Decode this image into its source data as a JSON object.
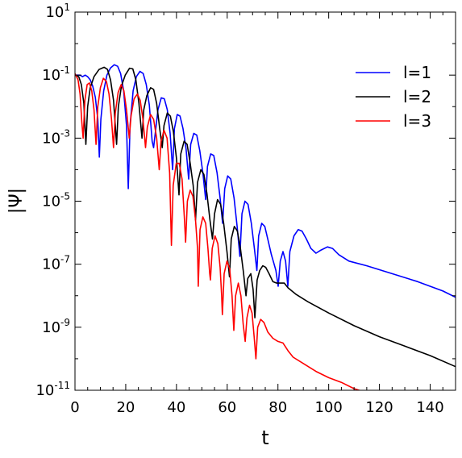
{
  "chart_data": {
    "type": "line",
    "title": "",
    "xlabel": "t",
    "ylabel": "|Ψ|",
    "xlim": [
      0,
      150
    ],
    "ylim_log10": [
      -11,
      1
    ],
    "yscale": "log",
    "grid": false,
    "legend_position": "upper right",
    "x_ticks": [
      0,
      20,
      40,
      60,
      80,
      100,
      120,
      140
    ],
    "x_tick_labels": [
      "0",
      "20",
      "40",
      "60",
      "80",
      "100",
      "120",
      "140"
    ],
    "y_tick_exponents": [
      1,
      -1,
      -3,
      -5,
      -7,
      -9,
      -11
    ],
    "y_tick_base": "10",
    "y_tick_labels": [
      "1",
      "-1",
      "-3",
      "-5",
      "-7",
      "-9",
      "-11"
    ],
    "series": [
      {
        "name": "l=1",
        "color": "#0000ff",
        "log10_points": [
          [
            0,
            -1.0
          ],
          [
            2,
            -1.0
          ],
          [
            3,
            -1.05
          ],
          [
            4,
            -1.0
          ],
          [
            5,
            -1.05
          ],
          [
            6,
            -1.15
          ],
          [
            7,
            -1.35
          ],
          [
            8,
            -1.7
          ],
          [
            9,
            -2.4
          ],
          [
            9.6,
            -3.6
          ],
          [
            10.2,
            -2.4
          ],
          [
            11.3,
            -1.5
          ],
          [
            12.6,
            -1.0
          ],
          [
            14,
            -0.77
          ],
          [
            15.5,
            -0.67
          ],
          [
            16.8,
            -0.72
          ],
          [
            18,
            -0.95
          ],
          [
            19.2,
            -1.5
          ],
          [
            20.3,
            -2.6
          ],
          [
            21,
            -4.6
          ],
          [
            21.7,
            -2.6
          ],
          [
            22.9,
            -1.5
          ],
          [
            24.2,
            -1.05
          ],
          [
            25.6,
            -0.88
          ],
          [
            26.9,
            -0.95
          ],
          [
            28.1,
            -1.3
          ],
          [
            29.3,
            -1.95
          ],
          [
            30.4,
            -3.1
          ],
          [
            31,
            -3.3
          ],
          [
            32.7,
            -2.1
          ],
          [
            34.0,
            -1.72
          ],
          [
            35.2,
            -1.75
          ],
          [
            36.4,
            -2.1
          ],
          [
            37.5,
            -2.85
          ],
          [
            38.5,
            -4.0
          ],
          [
            39.2,
            -2.7
          ],
          [
            40.3,
            -2.25
          ],
          [
            41.4,
            -2.3
          ],
          [
            42.6,
            -2.7
          ],
          [
            43.8,
            -3.35
          ],
          [
            44.8,
            -4.3
          ],
          [
            45.6,
            -3.2
          ],
          [
            46.8,
            -2.85
          ],
          [
            48.0,
            -2.9
          ],
          [
            49.2,
            -3.4
          ],
          [
            50.4,
            -4.1
          ],
          [
            51.5,
            -4.95
          ],
          [
            52.2,
            -3.9
          ],
          [
            53.5,
            -3.5
          ],
          [
            54.7,
            -3.55
          ],
          [
            56.0,
            -4.1
          ],
          [
            57.2,
            -4.9
          ],
          [
            58.2,
            -5.7
          ],
          [
            59.0,
            -4.6
          ],
          [
            60.2,
            -4.2
          ],
          [
            61.4,
            -4.3
          ],
          [
            62.7,
            -4.9
          ],
          [
            63.9,
            -5.8
          ],
          [
            65.0,
            -6.75
          ],
          [
            65.8,
            -5.4
          ],
          [
            67.0,
            -5.0
          ],
          [
            68.2,
            -5.1
          ],
          [
            69.5,
            -5.7
          ],
          [
            70.7,
            -6.5
          ],
          [
            71.7,
            -7.2
          ],
          [
            72.4,
            -6.1
          ],
          [
            73.6,
            -5.7
          ],
          [
            74.8,
            -5.8
          ],
          [
            76.0,
            -6.2
          ],
          [
            77.4,
            -6.7
          ],
          [
            78.5,
            -7.0
          ],
          [
            79.2,
            -7.2
          ],
          [
            80.1,
            -7.7
          ],
          [
            80.9,
            -6.9
          ],
          [
            82.0,
            -6.6
          ],
          [
            83.0,
            -6.9
          ],
          [
            83.9,
            -7.7
          ],
          [
            84.7,
            -6.6
          ],
          [
            86.3,
            -6.1
          ],
          [
            88.0,
            -5.9
          ],
          [
            89.5,
            -5.95
          ],
          [
            91.2,
            -6.2
          ],
          [
            93.0,
            -6.5
          ],
          [
            95.0,
            -6.65
          ],
          [
            97.0,
            -6.55
          ],
          [
            99.5,
            -6.45
          ],
          [
            101.5,
            -6.5
          ],
          [
            104.0,
            -6.7
          ],
          [
            108.0,
            -6.9
          ],
          [
            115.0,
            -7.05
          ],
          [
            125.0,
            -7.3
          ],
          [
            135.0,
            -7.55
          ],
          [
            145.0,
            -7.85
          ],
          [
            150.0,
            -8.05
          ]
        ]
      },
      {
        "name": "l=2",
        "color": "#000000",
        "log10_points": [
          [
            0,
            -1.0
          ],
          [
            1.5,
            -1.05
          ],
          [
            2.5,
            -1.3
          ],
          [
            3.5,
            -1.9
          ],
          [
            4.3,
            -3.2
          ],
          [
            5.0,
            -2.0
          ],
          [
            6.0,
            -1.4
          ],
          [
            7.5,
            -1.05
          ],
          [
            9.5,
            -0.82
          ],
          [
            11.5,
            -0.75
          ],
          [
            12.8,
            -0.82
          ],
          [
            14.0,
            -1.15
          ],
          [
            15.2,
            -1.8
          ],
          [
            16.4,
            -3.2
          ],
          [
            17.1,
            -2.0
          ],
          [
            18.3,
            -1.35
          ],
          [
            19.8,
            -1.0
          ],
          [
            21.5,
            -0.78
          ],
          [
            22.8,
            -0.8
          ],
          [
            24.0,
            -1.15
          ],
          [
            25.2,
            -1.9
          ],
          [
            26.4,
            -3.0
          ],
          [
            27.1,
            -2.1
          ],
          [
            28.3,
            -1.65
          ],
          [
            29.8,
            -1.4
          ],
          [
            31.0,
            -1.45
          ],
          [
            32.2,
            -1.9
          ],
          [
            33.4,
            -2.7
          ],
          [
            34.4,
            -3.3
          ],
          [
            35.1,
            -2.6
          ],
          [
            36.4,
            -2.2
          ],
          [
            37.6,
            -2.3
          ],
          [
            38.8,
            -2.8
          ],
          [
            40.0,
            -3.65
          ],
          [
            41.0,
            -4.8
          ],
          [
            41.7,
            -3.5
          ],
          [
            43.0,
            -3.1
          ],
          [
            44.2,
            -3.2
          ],
          [
            45.4,
            -3.8
          ],
          [
            46.6,
            -4.5
          ],
          [
            47.5,
            -5.6
          ],
          [
            48.3,
            -4.4
          ],
          [
            49.6,
            -4.0
          ],
          [
            50.8,
            -4.15
          ],
          [
            52.0,
            -4.75
          ],
          [
            53.2,
            -5.6
          ],
          [
            54.2,
            -6.2
          ],
          [
            55.0,
            -5.4
          ],
          [
            56.2,
            -4.95
          ],
          [
            57.4,
            -5.1
          ],
          [
            58.6,
            -5.7
          ],
          [
            59.9,
            -6.6
          ],
          [
            60.9,
            -7.4
          ],
          [
            61.6,
            -6.2
          ],
          [
            62.8,
            -5.8
          ],
          [
            64.0,
            -5.95
          ],
          [
            65.2,
            -6.5
          ],
          [
            66.4,
            -7.25
          ],
          [
            67.4,
            -8.0
          ],
          [
            68.1,
            -7.45
          ],
          [
            69.3,
            -7.3
          ],
          [
            70.2,
            -7.8
          ],
          [
            70.9,
            -8.7
          ],
          [
            71.8,
            -7.5
          ],
          [
            72.8,
            -7.2
          ],
          [
            74.0,
            -7.05
          ],
          [
            75.2,
            -7.1
          ],
          [
            76.5,
            -7.3
          ],
          [
            78.0,
            -7.55
          ],
          [
            79.5,
            -7.6
          ],
          [
            81.0,
            -7.6
          ],
          [
            82.5,
            -7.6
          ],
          [
            84.0,
            -7.75
          ],
          [
            87.0,
            -7.95
          ],
          [
            92.0,
            -8.2
          ],
          [
            100.0,
            -8.55
          ],
          [
            110.0,
            -8.95
          ],
          [
            120.0,
            -9.3
          ],
          [
            130.0,
            -9.6
          ],
          [
            140.0,
            -9.9
          ],
          [
            150.0,
            -10.25
          ]
        ]
      },
      {
        "name": "l=3",
        "color": "#ff0000",
        "log10_points": [
          [
            0,
            -0.95
          ],
          [
            1.2,
            -1.15
          ],
          [
            2.0,
            -1.6
          ],
          [
            2.7,
            -2.5
          ],
          [
            3.2,
            -3.0
          ],
          [
            3.9,
            -1.8
          ],
          [
            4.8,
            -1.3
          ],
          [
            5.7,
            -1.25
          ],
          [
            6.6,
            -1.5
          ],
          [
            7.5,
            -2.1
          ],
          [
            8.3,
            -3.2
          ],
          [
            9.0,
            -2.0
          ],
          [
            10.0,
            -1.4
          ],
          [
            11.2,
            -1.1
          ],
          [
            12.4,
            -1.2
          ],
          [
            13.4,
            -1.6
          ],
          [
            14.4,
            -2.4
          ],
          [
            15.2,
            -3.3
          ],
          [
            15.9,
            -2.2
          ],
          [
            17.0,
            -1.55
          ],
          [
            18.2,
            -1.3
          ],
          [
            19.3,
            -1.5
          ],
          [
            20.3,
            -2.1
          ],
          [
            21.4,
            -3.0
          ],
          [
            22.1,
            -2.3
          ],
          [
            23.3,
            -1.75
          ],
          [
            24.6,
            -1.6
          ],
          [
            25.7,
            -1.8
          ],
          [
            26.8,
            -2.4
          ],
          [
            27.8,
            -3.3
          ],
          [
            28.5,
            -2.65
          ],
          [
            29.8,
            -2.25
          ],
          [
            31.0,
            -2.4
          ],
          [
            32.2,
            -3.0
          ],
          [
            33.2,
            -4.0
          ],
          [
            33.9,
            -3.1
          ],
          [
            35.1,
            -2.75
          ],
          [
            36.3,
            -3.0
          ],
          [
            37.3,
            -4.1
          ],
          [
            38.0,
            -6.4
          ],
          [
            38.7,
            -4.5
          ],
          [
            39.9,
            -3.8
          ],
          [
            41.1,
            -3.8
          ],
          [
            42.2,
            -4.3
          ],
          [
            43.1,
            -5.5
          ],
          [
            43.6,
            -6.3
          ],
          [
            44.3,
            -5.0
          ],
          [
            45.4,
            -4.65
          ],
          [
            46.5,
            -4.85
          ],
          [
            47.5,
            -5.6
          ],
          [
            48.3,
            -6.5
          ],
          [
            48.6,
            -7.7
          ],
          [
            49.3,
            -5.9
          ],
          [
            50.4,
            -5.5
          ],
          [
            51.5,
            -5.7
          ],
          [
            52.4,
            -6.5
          ],
          [
            53.1,
            -7.3
          ],
          [
            53.4,
            -7.5
          ],
          [
            54.1,
            -6.5
          ],
          [
            55.2,
            -6.1
          ],
          [
            56.3,
            -6.35
          ],
          [
            57.2,
            -7.1
          ],
          [
            57.8,
            -8.0
          ],
          [
            58.1,
            -8.6
          ],
          [
            58.8,
            -7.3
          ],
          [
            59.9,
            -6.9
          ],
          [
            61.0,
            -7.15
          ],
          [
            61.9,
            -8.0
          ],
          [
            62.4,
            -8.8
          ],
          [
            62.6,
            -9.1
          ],
          [
            63.3,
            -8.0
          ],
          [
            64.4,
            -7.6
          ],
          [
            65.4,
            -8.0
          ],
          [
            66.3,
            -8.9
          ],
          [
            67.1,
            -9.45
          ],
          [
            67.8,
            -8.7
          ],
          [
            68.8,
            -8.3
          ],
          [
            69.8,
            -8.55
          ],
          [
            70.6,
            -9.3
          ],
          [
            71.3,
            -10.0
          ],
          [
            72.0,
            -9.0
          ],
          [
            73.2,
            -8.75
          ],
          [
            74.5,
            -8.85
          ],
          [
            76.0,
            -9.15
          ],
          [
            78.0,
            -9.35
          ],
          [
            80.0,
            -9.45
          ],
          [
            82.0,
            -9.5
          ],
          [
            84.0,
            -9.75
          ],
          [
            86.0,
            -9.95
          ],
          [
            90.0,
            -10.15
          ],
          [
            95.0,
            -10.4
          ],
          [
            100.0,
            -10.6
          ],
          [
            105.0,
            -10.75
          ],
          [
            110.0,
            -10.95
          ],
          [
            114.0,
            -11.05
          ]
        ]
      }
    ]
  }
}
